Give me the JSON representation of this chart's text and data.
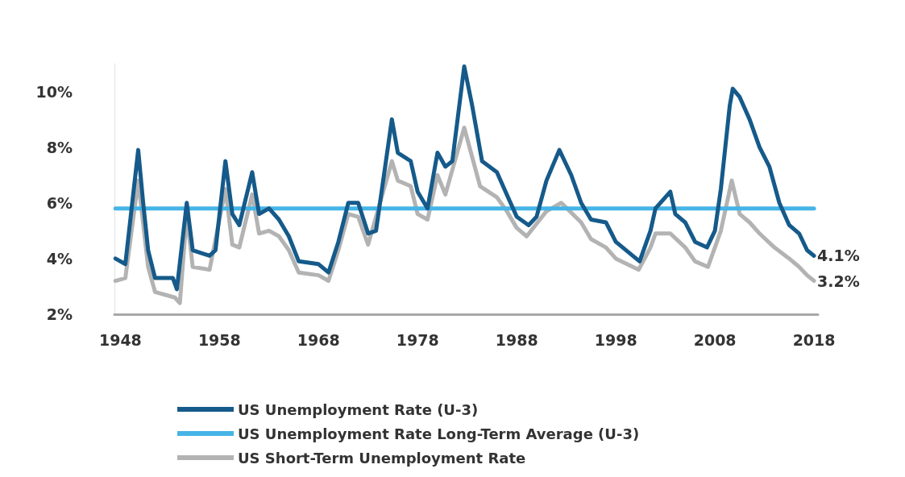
{
  "chart_data": {
    "type": "line",
    "xlim": [
      1947.4,
      2018.4
    ],
    "xticks": [
      1948,
      1958,
      1968,
      1978,
      1988,
      1998,
      2008,
      2018
    ],
    "ylim": [
      2,
      11
    ],
    "yticks": [
      {
        "value": 2,
        "label": "2%"
      },
      {
        "value": 4,
        "label": "4%"
      },
      {
        "value": 6,
        "label": "6%"
      },
      {
        "value": 8,
        "label": "8%"
      },
      {
        "value": 10,
        "label": "10%"
      }
    ],
    "grid": false,
    "legend": "bottom",
    "marker": "none",
    "line_style": "solid",
    "series": [
      {
        "name": "US Unemployment Rate (U-3)",
        "color": "#155a8a",
        "x": [
          1947.5,
          1948.5,
          1949.8,
          1950.3,
          1950.8,
          1951.5,
          1953.3,
          1953.7,
          1954.7,
          1955.3,
          1957,
          1957.6,
          1958.6,
          1959.3,
          1960,
          1961.3,
          1962,
          1963,
          1964,
          1965,
          1966,
          1968,
          1969,
          1970,
          1971,
          1972,
          1973,
          1973.8,
          1975.4,
          1976,
          1977.3,
          1978,
          1979,
          1980,
          1980.8,
          1981.5,
          1982.7,
          1983.5,
          1984.5,
          1986,
          1987,
          1988,
          1989.2,
          1990,
          1991,
          1992.3,
          1993.5,
          1994.5,
          1995.5,
          1997,
          1998,
          2000.4,
          2001.5,
          2002,
          2003.5,
          2004,
          2005,
          2006,
          2007.2,
          2008,
          2008.6,
          2009.5,
          2009.8,
          2010.5,
          2011.5,
          2012.5,
          2013.5,
          2014.5,
          2015.5,
          2016.5,
          2017.3,
          2018
        ],
        "values": [
          4.0,
          3.8,
          7.9,
          6.0,
          4.3,
          3.3,
          3.3,
          2.9,
          6.0,
          4.3,
          4.1,
          4.3,
          7.5,
          5.6,
          5.2,
          7.1,
          5.6,
          5.8,
          5.4,
          4.8,
          3.9,
          3.8,
          3.5,
          4.6,
          6.0,
          6.0,
          4.9,
          5.0,
          9.0,
          7.8,
          7.5,
          6.4,
          5.8,
          7.8,
          7.3,
          7.5,
          10.9,
          9.5,
          7.5,
          7.1,
          6.3,
          5.5,
          5.2,
          5.5,
          6.8,
          7.9,
          7.0,
          6.0,
          5.4,
          5.3,
          4.6,
          3.9,
          5.0,
          5.8,
          6.4,
          5.6,
          5.3,
          4.6,
          4.4,
          5.0,
          6.5,
          9.5,
          10.1,
          9.8,
          9.0,
          8.0,
          7.3,
          6.0,
          5.2,
          4.9,
          4.3,
          4.1
        ]
      },
      {
        "name": "US Unemployment Rate Long-Term Average (U-3)",
        "color": "#45b4e6",
        "x": [
          1947.5,
          2018
        ],
        "values": [
          5.8,
          5.8
        ]
      },
      {
        "name": "US Short-Term Unemployment Rate",
        "color": "#b3b3b3",
        "x": [
          1947.5,
          1948.5,
          1949.8,
          1950.8,
          1951.5,
          1953.5,
          1954,
          1954.7,
          1955.3,
          1957,
          1958.6,
          1959.3,
          1960,
          1961.3,
          1962,
          1963,
          1964,
          1965,
          1966,
          1968,
          1969,
          1970,
          1971,
          1972,
          1973,
          1975.4,
          1976,
          1977.3,
          1978,
          1979,
          1980,
          1980.8,
          1982.7,
          1984.3,
          1986,
          1987,
          1988,
          1989,
          1991,
          1992.5,
          1994.5,
          1995.5,
          1997,
          1998,
          2000.3,
          2001.5,
          2002,
          2003.5,
          2005,
          2006,
          2007.3,
          2008.6,
          2009.7,
          2010.5,
          2011.5,
          2012.5,
          2014,
          2015.5,
          2016.5,
          2017.3,
          2018
        ],
        "values": [
          3.2,
          3.3,
          6.8,
          3.7,
          2.8,
          2.6,
          2.4,
          5.6,
          3.7,
          3.6,
          6.5,
          4.5,
          4.4,
          6.3,
          4.9,
          5.0,
          4.8,
          4.3,
          3.5,
          3.4,
          3.2,
          4.3,
          5.6,
          5.5,
          4.5,
          7.5,
          6.8,
          6.6,
          5.6,
          5.4,
          7.0,
          6.3,
          8.7,
          6.6,
          6.2,
          5.7,
          5.1,
          4.8,
          5.7,
          6.0,
          5.3,
          4.7,
          4.4,
          4.0,
          3.6,
          4.4,
          4.9,
          4.9,
          4.4,
          3.9,
          3.7,
          5.0,
          6.8,
          5.6,
          5.3,
          4.9,
          4.4,
          4.0,
          3.7,
          3.4,
          3.2
        ]
      }
    ],
    "annotations": [
      {
        "text": "4.1%",
        "x": 2018,
        "y": 4.1
      },
      {
        "text": "3.2%",
        "x": 2018,
        "y": 3.2
      }
    ]
  }
}
